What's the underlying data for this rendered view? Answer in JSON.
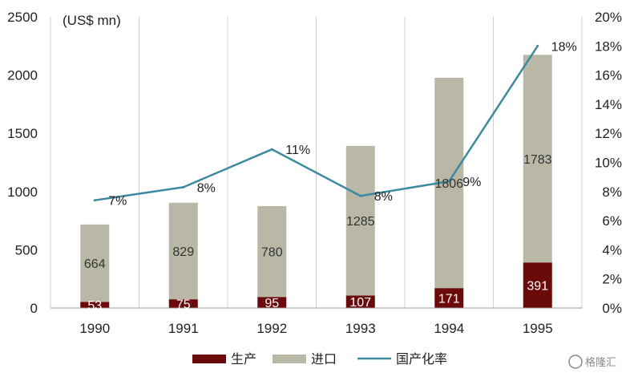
{
  "chart_data": {
    "type": "bar",
    "stacked": true,
    "unit_label": "(US$ mn)",
    "categories": [
      "1990",
      "1991",
      "1992",
      "1993",
      "1994",
      "1995"
    ],
    "series": [
      {
        "name": "生产",
        "kind": "bar",
        "axis": "left",
        "color": "#6b0a0a",
        "label_color": "#ffffff",
        "values": [
          53,
          75,
          95,
          107,
          171,
          391
        ]
      },
      {
        "name": "进口",
        "kind": "bar",
        "axis": "left",
        "color": "#b9b7a6",
        "label_color": "#333333",
        "values": [
          664,
          829,
          780,
          1285,
          1806,
          1783
        ]
      },
      {
        "name": "国产化率",
        "kind": "line",
        "axis": "right",
        "color": "#3d8aa0",
        "values": [
          7.4,
          8.3,
          10.9,
          7.7,
          8.7,
          18.0
        ],
        "labels": [
          "7%",
          "8%",
          "11%",
          "8%",
          "9%",
          "18%"
        ]
      }
    ],
    "y_left": {
      "ylim": [
        0,
        2500
      ],
      "ticks": [
        "0",
        "500",
        "1000",
        "1500",
        "2000",
        "2500"
      ]
    },
    "y_right": {
      "ylim": [
        0,
        20
      ],
      "ticks": [
        "0%",
        "2%",
        "4%",
        "6%",
        "8%",
        "10%",
        "12%",
        "14%",
        "16%",
        "18%",
        "20%"
      ]
    },
    "grid": "vertical",
    "legend": "bottom-center"
  },
  "watermark": {
    "text": "格隆汇"
  }
}
